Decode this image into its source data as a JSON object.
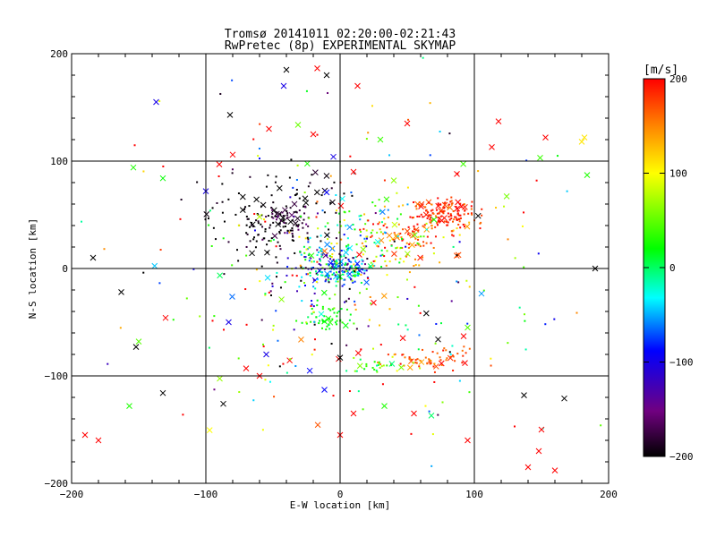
{
  "chart_data": {
    "type": "scatter",
    "title": "Tromsø 20141011 02:20:00-02:21:43",
    "subtitle": "RwPretec (8p) EXPERIMENTAL SKYMAP",
    "xlabel": "E-W location [km]",
    "ylabel": "N-S location [km]",
    "xlim": [
      -200,
      200
    ],
    "ylim": [
      -200,
      200
    ],
    "x_ticks": [
      -200,
      -100,
      0,
      100,
      200
    ],
    "y_ticks": [
      -200,
      -100,
      0,
      100,
      200
    ],
    "grid": true,
    "colorbar": {
      "label": "[m/s]",
      "min": -200,
      "max": 200,
      "ticks": [
        -200,
        -100,
        0,
        100,
        200
      ],
      "colormap": "black-purple-blue-cyan-green-yellow-red"
    },
    "marker_types": [
      "dot",
      "x"
    ],
    "clusters": [
      {
        "x": 0,
        "y": 0,
        "sx": 12,
        "sy": 9,
        "n": 180,
        "v": -60,
        "vs": 55
      },
      {
        "x": -42,
        "y": 45,
        "sx": 10,
        "sy": 8,
        "n": 70,
        "v": -185,
        "vs": 20
      },
      {
        "x": 80,
        "y": 50,
        "sx": 12,
        "sy": 7,
        "n": 140,
        "v": 180,
        "vs": 20
      },
      {
        "x": 55,
        "y": 30,
        "sx": 18,
        "sy": 12,
        "n": 90,
        "v": 170,
        "vs": 35
      },
      {
        "x": 65,
        "y": -85,
        "sx": 16,
        "sy": 5,
        "n": 60,
        "v": 175,
        "vs": 20
      },
      {
        "x": 30,
        "y": -90,
        "sx": 12,
        "sy": 5,
        "n": 30,
        "v": 30,
        "vs": 40
      },
      {
        "x": -10,
        "y": -45,
        "sx": 8,
        "sy": 6,
        "n": 50,
        "v": 10,
        "vs": 10
      },
      {
        "x": -30,
        "y": 60,
        "sx": 20,
        "sy": 20,
        "n": 60,
        "v": -200,
        "vs": 10
      },
      {
        "x": -70,
        "y": 40,
        "sx": 20,
        "sy": 18,
        "n": 60,
        "v": -200,
        "vs": 10
      },
      {
        "x": 25,
        "y": 30,
        "sx": 20,
        "sy": 18,
        "n": 80,
        "v": 40,
        "vs": 70
      },
      {
        "x": -20,
        "y": 10,
        "sx": 30,
        "sy": 30,
        "n": 120,
        "v": -40,
        "vs": 110
      },
      {
        "x": 0,
        "y": 0,
        "sx": 80,
        "sy": 80,
        "n": 260,
        "v": 60,
        "vs": 150
      }
    ],
    "points": [
      {
        "x": -40,
        "y": 185,
        "v": -200,
        "m": "x"
      },
      {
        "x": -10,
        "y": 180,
        "v": -200,
        "m": "x"
      },
      {
        "x": -42,
        "y": 170,
        "v": -110,
        "m": "x"
      },
      {
        "x": 13,
        "y": 170,
        "v": 200,
        "m": "x"
      },
      {
        "x": -137,
        "y": 155,
        "v": -110,
        "m": "x"
      },
      {
        "x": 118,
        "y": 137,
        "v": 200,
        "m": "x"
      },
      {
        "x": -82,
        "y": 143,
        "v": -200,
        "m": "x"
      },
      {
        "x": 50,
        "y": 135,
        "v": 200,
        "m": "x"
      },
      {
        "x": -53,
        "y": 130,
        "v": 200,
        "m": "x"
      },
      {
        "x": -20,
        "y": 125,
        "v": 200,
        "m": "x"
      },
      {
        "x": 30,
        "y": 120,
        "v": 30,
        "m": "x"
      },
      {
        "x": 182,
        "y": 122,
        "v": 110,
        "m": "x"
      },
      {
        "x": 180,
        "y": 118,
        "v": 110,
        "m": "x"
      },
      {
        "x": 153,
        "y": 122,
        "v": 200,
        "m": "x"
      },
      {
        "x": 113,
        "y": 113,
        "v": 200,
        "m": "x"
      },
      {
        "x": -154,
        "y": 94,
        "v": 20,
        "m": "x"
      },
      {
        "x": 149,
        "y": 103,
        "v": 30,
        "m": "x"
      },
      {
        "x": 184,
        "y": 87,
        "v": 20,
        "m": "x"
      },
      {
        "x": -80,
        "y": 106,
        "v": 200,
        "m": "x"
      },
      {
        "x": -90,
        "y": 97,
        "v": 200,
        "m": "x"
      },
      {
        "x": -5,
        "y": 104,
        "v": -110,
        "m": "x"
      },
      {
        "x": 87,
        "y": 88,
        "v": 200,
        "m": "x"
      },
      {
        "x": 190,
        "y": 0,
        "v": -200,
        "m": "x"
      },
      {
        "x": -184,
        "y": 10,
        "v": -200,
        "m": "x"
      },
      {
        "x": -163,
        "y": -22,
        "v": -200,
        "m": "x"
      },
      {
        "x": -152,
        "y": -73,
        "v": -200,
        "m": "x"
      },
      {
        "x": -132,
        "y": -116,
        "v": -200,
        "m": "x"
      },
      {
        "x": -157,
        "y": -128,
        "v": 20,
        "m": "x"
      },
      {
        "x": -87,
        "y": -126,
        "v": -200,
        "m": "x"
      },
      {
        "x": -130,
        "y": -46,
        "v": 200,
        "m": "x"
      },
      {
        "x": -70,
        "y": -93,
        "v": 200,
        "m": "x"
      },
      {
        "x": -60,
        "y": -100,
        "v": 200,
        "m": "x"
      },
      {
        "x": 0,
        "y": -83,
        "v": -200,
        "m": "x"
      },
      {
        "x": 0,
        "y": -155,
        "v": 200,
        "m": "x"
      },
      {
        "x": 10,
        "y": -135,
        "v": 200,
        "m": "x"
      },
      {
        "x": 33,
        "y": -128,
        "v": 20,
        "m": "x"
      },
      {
        "x": 55,
        "y": -135,
        "v": 200,
        "m": "x"
      },
      {
        "x": 137,
        "y": -118,
        "v": -200,
        "m": "x"
      },
      {
        "x": 167,
        "y": -121,
        "v": -200,
        "m": "x"
      },
      {
        "x": 150,
        "y": -150,
        "v": 200,
        "m": "x"
      },
      {
        "x": 148,
        "y": -170,
        "v": 200,
        "m": "x"
      },
      {
        "x": 95,
        "y": -160,
        "v": 200,
        "m": "x"
      },
      {
        "x": 95,
        "y": -55,
        "v": 40,
        "m": "x"
      },
      {
        "x": 92,
        "y": -63,
        "v": 200,
        "m": "x"
      },
      {
        "x": 73,
        "y": -66,
        "v": -200,
        "m": "x"
      },
      {
        "x": 93,
        "y": -88,
        "v": 200,
        "m": "x"
      },
      {
        "x": -55,
        "y": -80,
        "v": -110,
        "m": "x"
      },
      {
        "x": -83,
        "y": -50,
        "v": -110,
        "m": "x"
      },
      {
        "x": -132,
        "y": 84,
        "v": 10,
        "m": "x"
      },
      {
        "x": -100,
        "y": 72,
        "v": -110,
        "m": "x"
      },
      {
        "x": 40,
        "y": 82,
        "v": 60,
        "m": "x"
      },
      {
        "x": 10,
        "y": 90,
        "v": 200,
        "m": "x"
      },
      {
        "x": -150,
        "y": -68,
        "v": 40,
        "m": "x"
      },
      {
        "x": -190,
        "y": -155,
        "v": 200,
        "m": "x"
      },
      {
        "x": -180,
        "y": -160,
        "v": 200,
        "m": "x"
      },
      {
        "x": 140,
        "y": -185,
        "v": 200,
        "m": "x"
      },
      {
        "x": 160,
        "y": -188,
        "v": 200,
        "m": "x"
      }
    ]
  }
}
